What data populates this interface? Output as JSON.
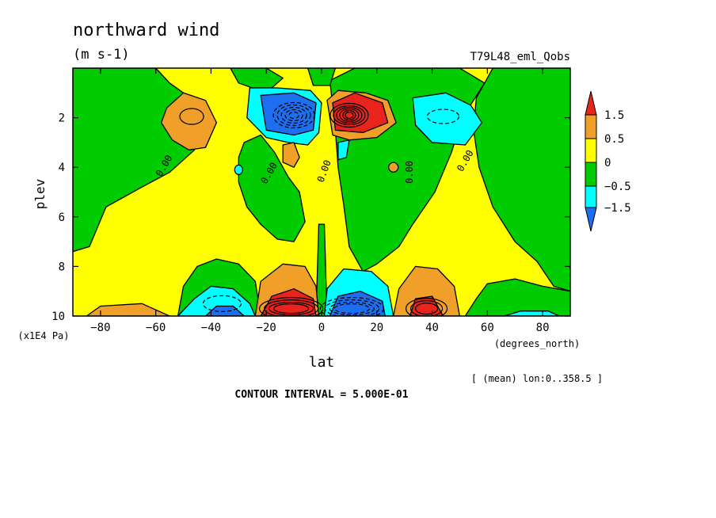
{
  "chart_data": {
    "type": "heatmap",
    "title": "northward wind",
    "units": "(m s-1)",
    "experiment": "T79L48_eml_Qobs",
    "xlabel": "lat",
    "x_units": "(degrees_north)",
    "ylabel": "plev",
    "y_units": "(x1E4 Pa)",
    "averaging_note": "[ (mean) lon:0..358.5 ]",
    "contour_interval_text": "CONTOUR INTERVAL = 5.000E-01",
    "xlim": [
      -90,
      90
    ],
    "ylim": [
      10,
      0
    ],
    "x_ticks": [
      -80,
      -60,
      -40,
      -20,
      0,
      20,
      40,
      60,
      80
    ],
    "y_ticks": [
      2,
      4,
      6,
      8,
      10
    ],
    "zero_contour_label": "0.00",
    "colorbar": {
      "labels": [
        "1.5",
        "0.5",
        "0",
        "-0.5",
        "-1.5"
      ],
      "bands": [
        {
          "range": "> 1.5",
          "color": "#e8241d"
        },
        {
          "range": "0.5 to 1.5",
          "color": "#f0a028"
        },
        {
          "range": "0 to 0.5",
          "color": "#ffff00"
        },
        {
          "range": "-0.5 to 0",
          "color": "#00cc00"
        },
        {
          "range": "-1.5 to -0.5",
          "color": "#00ffff"
        },
        {
          "range": "< -1.5",
          "color": "#1e6ef0"
        }
      ]
    },
    "features": [
      {
        "lat": 10,
        "plev": 1.9,
        "value": 3.0,
        "sign": "positive"
      },
      {
        "lat": -10,
        "plev": 1.9,
        "value": -3.0,
        "sign": "negative"
      },
      {
        "lat": -50,
        "plev": 1.8,
        "value": 1.0,
        "sign": "positive"
      },
      {
        "lat": 45,
        "plev": 1.9,
        "value": -1.0,
        "sign": "negative"
      },
      {
        "lat": -10,
        "plev": 9.6,
        "value": 2.5,
        "sign": "positive"
      },
      {
        "lat": 10,
        "plev": 9.6,
        "value": -2.5,
        "sign": "negative"
      },
      {
        "lat": -38,
        "plev": 9.6,
        "value": -1.8,
        "sign": "negative"
      },
      {
        "lat": 38,
        "plev": 9.6,
        "value": 2.0,
        "sign": "positive"
      }
    ]
  }
}
